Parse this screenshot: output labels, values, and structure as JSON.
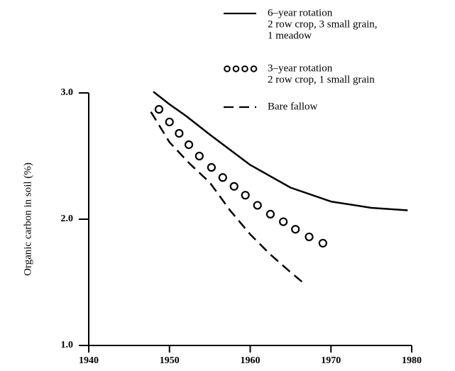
{
  "chart_data": {
    "type": "line",
    "y_label": "Organic carbon in soil (%)",
    "xlim": [
      1940,
      1980
    ],
    "xticks": [
      1940,
      1950,
      1960,
      1970,
      1980
    ],
    "ylim": [
      1,
      3
    ],
    "yticks": [
      {
        "value": 1,
        "label": "1.0"
      },
      {
        "value": 2,
        "label": "2.0"
      },
      {
        "value": 3,
        "label": "3.0"
      }
    ],
    "series": [
      {
        "name": "6–year rotation",
        "description": [
          "2 row crop, 3 small grain,",
          "1 meadow"
        ],
        "style": "solid",
        "color": "#000000",
        "x": [
          1948,
          1950,
          1952,
          1955,
          1960,
          1965,
          1970,
          1975,
          1979.5
        ],
        "values": [
          3.01,
          2.91,
          2.82,
          2.67,
          2.43,
          2.25,
          2.14,
          2.09,
          2.07
        ]
      },
      {
        "name": "3–year rotation",
        "description": [
          "2 row crop, 1 small grain"
        ],
        "style": "markers",
        "color": "#000000",
        "x": [
          1948.7,
          1950.0,
          1951.2,
          1952.4,
          1953.7,
          1955.2,
          1956.6,
          1958.0,
          1959.4,
          1960.9,
          1962.5,
          1964.1,
          1965.6,
          1967.3,
          1969.0
        ],
        "values": [
          2.87,
          2.77,
          2.68,
          2.59,
          2.5,
          2.41,
          2.33,
          2.26,
          2.19,
          2.11,
          2.04,
          1.98,
          1.92,
          1.86,
          1.81
        ]
      },
      {
        "name": "Bare fallow",
        "description": [],
        "style": "dashed",
        "color": "#000000",
        "x": [
          1947.7,
          1950,
          1952.5,
          1955,
          1957.5,
          1960,
          1962.5,
          1965,
          1966.5
        ],
        "values": [
          2.85,
          2.61,
          2.44,
          2.29,
          2.07,
          1.88,
          1.72,
          1.58,
          1.5
        ]
      }
    ]
  }
}
